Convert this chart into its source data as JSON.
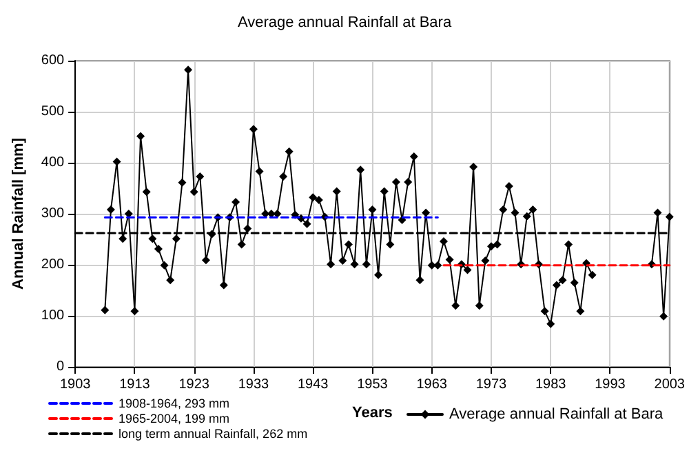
{
  "chart_data": {
    "type": "line",
    "title": "Average annual Rainfall at Bara",
    "xlabel": "Years",
    "ylabel": "Annual Rainfall [mm]",
    "xlim": [
      1903,
      2003
    ],
    "xticks": [
      1903,
      1913,
      1923,
      1933,
      1943,
      1953,
      1963,
      1973,
      1983,
      1993,
      2003
    ],
    "ylim": [
      0,
      600
    ],
    "yticks": [
      0,
      100,
      200,
      300,
      400,
      500,
      600
    ],
    "grid": true,
    "legend": "bottom",
    "series": [
      {
        "name": "1908-1964, 293 mm",
        "color": "#0000ff",
        "line_style": "dashed",
        "marker": "none",
        "x": [
          1908,
          1964
        ],
        "values": [
          293,
          293
        ]
      },
      {
        "name": "1965-2004, 199 mm",
        "color": "#ff0000",
        "line_style": "dashed",
        "marker": "none",
        "x": [
          1965,
          2003
        ],
        "values": [
          199,
          199
        ]
      },
      {
        "name": "long term annual Rainfall, 262 mm",
        "color": "#000000",
        "line_style": "dashed",
        "marker": "none",
        "x": [
          1903,
          2003
        ],
        "values": [
          262,
          262
        ]
      },
      {
        "name": "Average annual Rainfall at Bara",
        "color": "#000000",
        "line_style": "solid",
        "marker": "diamond",
        "x": [
          1908,
          1909,
          1910,
          1911,
          1912,
          1913,
          1914,
          1915,
          1916,
          1917,
          1918,
          1919,
          1920,
          1921,
          1922,
          1923,
          1924,
          1925,
          1926,
          1927,
          1928,
          1929,
          1930,
          1931,
          1932,
          1933,
          1934,
          1935,
          1936,
          1937,
          1938,
          1939,
          1940,
          1941,
          1942,
          1943,
          1944,
          1945,
          1946,
          1947,
          1948,
          1949,
          1950,
          1951,
          1952,
          1953,
          1954,
          1955,
          1956,
          1957,
          1958,
          1959,
          1960,
          1961,
          1962,
          1963,
          1964,
          1965,
          1966,
          1967,
          1968,
          1969,
          1970,
          1971,
          1972,
          1973,
          1974,
          1975,
          1976,
          1977,
          1978,
          1979,
          1980,
          1981,
          1982,
          1983,
          1984,
          1985,
          1986,
          1987,
          1988,
          1989,
          1990,
          1991,
          1992,
          1993,
          1994,
          1995,
          1996,
          1997,
          1998,
          1999,
          2000,
          2001,
          2002,
          2003
        ],
        "values": [
          111,
          308,
          402,
          251,
          300,
          109,
          452,
          343,
          251,
          231,
          199,
          170,
          251,
          361,
          582,
          343,
          373,
          209,
          260,
          293,
          160,
          293,
          323,
          240,
          271,
          466,
          383,
          300,
          300,
          300,
          373,
          422,
          298,
          291,
          280,
          332,
          327,
          294,
          201,
          344,
          208,
          240,
          201,
          386,
          201,
          308,
          180,
          344,
          240,
          362,
          288,
          362,
          412,
          170,
          302,
          199,
          199,
          246,
          210,
          120,
          201,
          190,
          392,
          120,
          208,
          236,
          240,
          308,
          354,
          302,
          201,
          295,
          308,
          201,
          109,
          84,
          160,
          170,
          240,
          165,
          109,
          203,
          180,
          null,
          null,
          null,
          null,
          null,
          null,
          null,
          null,
          null,
          201,
          302,
          99,
          294
        ]
      }
    ]
  }
}
